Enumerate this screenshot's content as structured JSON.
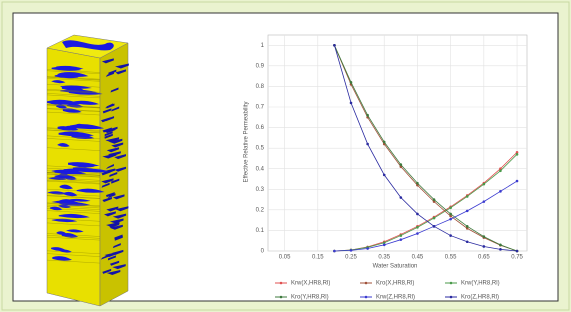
{
  "chart_data": {
    "type": "line",
    "y_label": "Effective Relative Permeability",
    "x_label": "Water Saturation",
    "x": [
      0.2,
      0.25,
      0.3,
      0.35,
      0.4,
      0.45,
      0.5,
      0.55,
      0.6,
      0.65,
      0.7,
      0.75
    ],
    "series": [
      {
        "name": "Krw(X,HR8,Rl)",
        "color": "#e05050",
        "values": [
          0,
          0.005,
          0.02,
          0.045,
          0.08,
          0.12,
          0.165,
          0.215,
          0.27,
          0.33,
          0.4,
          0.48
        ]
      },
      {
        "name": "Kro(X,HR8,Rl)",
        "color": "#a0523a",
        "values": [
          1,
          0.81,
          0.65,
          0.52,
          0.41,
          0.32,
          0.24,
          0.17,
          0.11,
          0.065,
          0.028,
          0
        ]
      },
      {
        "name": "Krw(Y,HR8,Rl)",
        "color": "#4a9a4a",
        "values": [
          0,
          0.005,
          0.018,
          0.04,
          0.075,
          0.115,
          0.16,
          0.21,
          0.265,
          0.325,
          0.39,
          0.47
        ]
      },
      {
        "name": "Kro(Y,HR8,Rl)",
        "color": "#3d7a3d",
        "values": [
          1,
          0.82,
          0.66,
          0.53,
          0.42,
          0.33,
          0.25,
          0.18,
          0.12,
          0.07,
          0.03,
          0
        ]
      },
      {
        "name": "Krw(Z,HR8,Rl)",
        "color": "#3a3ad0",
        "values": [
          0,
          0.003,
          0.012,
          0.03,
          0.055,
          0.085,
          0.12,
          0.155,
          0.195,
          0.24,
          0.29,
          0.34
        ]
      },
      {
        "name": "Kro(Z,HR8,Rl)",
        "color": "#2a2aa0",
        "values": [
          1,
          0.72,
          0.52,
          0.37,
          0.26,
          0.18,
          0.12,
          0.075,
          0.045,
          0.022,
          0.008,
          0
        ]
      }
    ],
    "xlim": [
      0.0,
      0.78
    ],
    "xticks": [
      0.05,
      0.15,
      0.25,
      0.35,
      0.45,
      0.55,
      0.65,
      0.75
    ],
    "ylim": [
      0,
      1.05
    ],
    "yticks": [
      0,
      0.1,
      0.2,
      0.3,
      0.4,
      0.5,
      0.6,
      0.7,
      0.8,
      0.9,
      1
    ],
    "grid": true
  }
}
